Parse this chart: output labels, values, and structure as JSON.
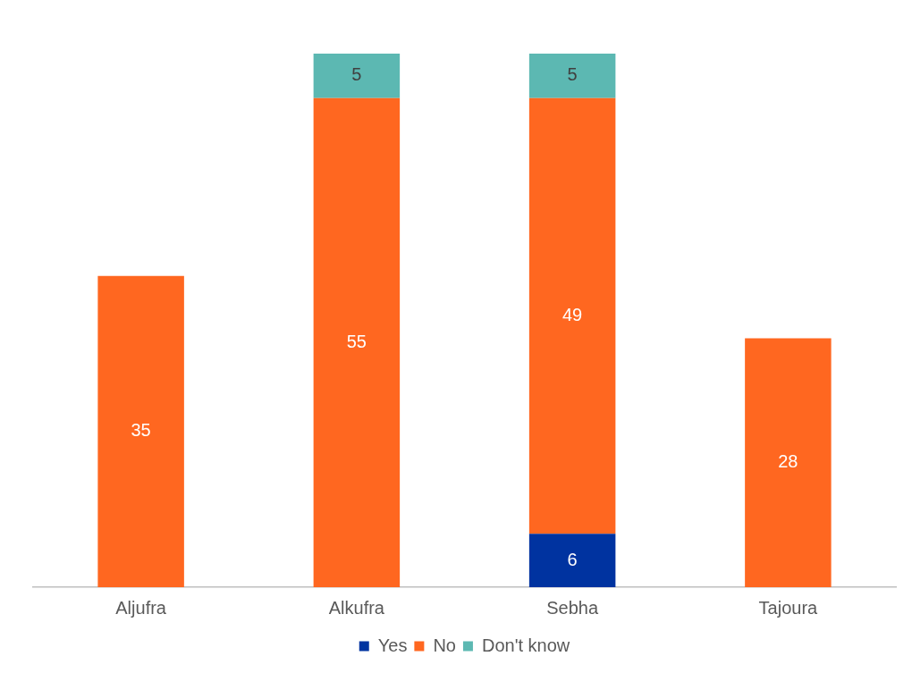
{
  "chart_data": {
    "type": "bar",
    "stacked": true,
    "categories": [
      "Aljufra",
      "Alkufra",
      "Sebha",
      "Tajoura"
    ],
    "series": [
      {
        "name": "Yes",
        "color": "#0033a0",
        "values": [
          null,
          null,
          6,
          null
        ]
      },
      {
        "name": "No",
        "color": "#ff6720",
        "values": [
          35,
          55,
          49,
          28
        ]
      },
      {
        "name": "Don't know",
        "color": "#5cb8b2",
        "values": [
          null,
          5,
          5,
          null
        ]
      }
    ],
    "data_labels": true,
    "legend": "bottom",
    "grid": false
  }
}
